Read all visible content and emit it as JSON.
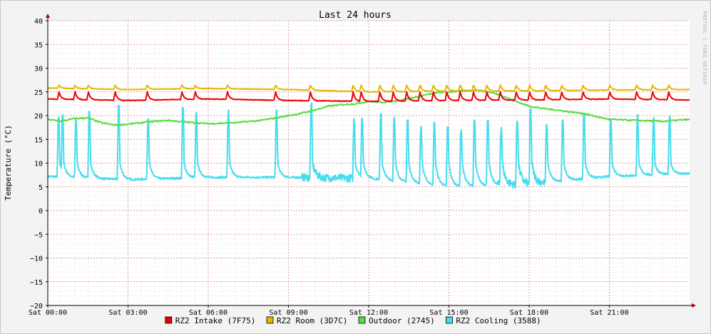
{
  "chart_data": {
    "type": "line",
    "title": "Last 24 hours",
    "ylabel": "Temperature (°C)",
    "xlabel": "",
    "watermark": "RRDTOOL / TOBI OETIKER",
    "ylim": [
      -20,
      40
    ],
    "y_ticks": [
      "40",
      "35",
      "30",
      "25",
      "20",
      "15",
      "10",
      "5",
      "0",
      "−5",
      "−10",
      "−15",
      "−20"
    ],
    "x_tick_labels": [
      "Sat 00:00",
      "Sat 03:00",
      "Sat 06:00",
      "Sat 09:00",
      "Sat 12:00",
      "Sat 15:00",
      "Sat 18:00",
      "Sat 21:00"
    ],
    "x_ticks_hours": [
      0,
      3,
      6,
      9,
      12,
      15,
      18,
      21
    ],
    "xlim_hours": [
      0,
      24
    ],
    "grid": true,
    "legend_position": "bottom",
    "series": [
      {
        "name": "RZ2 Intake (7F75)",
        "color": "#ee0000",
        "baseline": [
          [
            0,
            23.5
          ],
          [
            3,
            23.2
          ],
          [
            6,
            23.5
          ],
          [
            9,
            23.2
          ],
          [
            12,
            23.0
          ],
          [
            15,
            23.2
          ],
          [
            18,
            23.3
          ],
          [
            21,
            23.5
          ],
          [
            24,
            23.3
          ]
        ],
        "spikes": [
          0.4,
          1.0,
          1.5,
          2.5,
          3.7,
          5.0,
          5.5,
          6.7,
          8.5,
          9.8,
          11.4,
          11.7,
          12.4,
          12.9,
          13.4,
          13.9,
          14.4,
          14.9,
          15.4,
          15.9,
          16.4,
          16.9,
          17.5,
          18.0,
          18.6,
          19.2,
          20.0,
          21.0,
          22.0,
          22.6,
          23.2
        ],
        "spike_peak": 25.0
      },
      {
        "name": "RZ2 Room (3D7C)",
        "color": "#e8b400",
        "baseline": [
          [
            0,
            25.8
          ],
          [
            3,
            25.5
          ],
          [
            6,
            25.7
          ],
          [
            9,
            25.5
          ],
          [
            12,
            25.0
          ],
          [
            15,
            25.2
          ],
          [
            18,
            25.2
          ],
          [
            21,
            25.4
          ],
          [
            24,
            25.5
          ]
        ],
        "spikes": [
          0.4,
          1.0,
          1.5,
          2.5,
          3.7,
          5.0,
          5.5,
          6.7,
          8.5,
          9.8,
          11.4,
          11.7,
          12.4,
          12.9,
          13.4,
          13.9,
          14.4,
          14.9,
          15.4,
          15.9,
          16.4,
          16.9,
          17.5,
          18.0,
          18.6,
          19.2,
          20.0,
          21.0,
          22.0,
          22.6,
          23.2
        ],
        "spike_peak": 26.4
      },
      {
        "name": "Outdoor (2745)",
        "color": "#55dd44",
        "points": [
          [
            0,
            19.2
          ],
          [
            0.5,
            18.8
          ],
          [
            1,
            19.4
          ],
          [
            1.5,
            19.5
          ],
          [
            2,
            18.5
          ],
          [
            2.5,
            18.0
          ],
          [
            3,
            18.2
          ],
          [
            3.5,
            18.5
          ],
          [
            4,
            18.8
          ],
          [
            4.5,
            19.0
          ],
          [
            5,
            18.7
          ],
          [
            6,
            18.3
          ],
          [
            7,
            18.5
          ],
          [
            8,
            19.0
          ],
          [
            8.5,
            19.5
          ],
          [
            9,
            20.0
          ],
          [
            9.5,
            20.5
          ],
          [
            10,
            21.2
          ],
          [
            10.5,
            22.0
          ],
          [
            11,
            22.3
          ],
          [
            11.5,
            22.5
          ],
          [
            12,
            23.0
          ],
          [
            12.5,
            22.8
          ],
          [
            13,
            23.1
          ],
          [
            13.5,
            23.6
          ],
          [
            14,
            24.2
          ],
          [
            14.5,
            24.8
          ],
          [
            15,
            25.0
          ],
          [
            15.5,
            25.2
          ],
          [
            16,
            25.4
          ],
          [
            16.5,
            25.0
          ],
          [
            17,
            24.2
          ],
          [
            17.5,
            23.0
          ],
          [
            18,
            22.0
          ],
          [
            18.5,
            21.5
          ],
          [
            19,
            21.2
          ],
          [
            19.5,
            20.8
          ],
          [
            20,
            20.5
          ],
          [
            20.5,
            19.8
          ],
          [
            21,
            19.2
          ],
          [
            22,
            19.0
          ],
          [
            23,
            18.8
          ],
          [
            23.5,
            19.0
          ],
          [
            24,
            19.2
          ]
        ]
      },
      {
        "name": "RZ2 Cooling (3588)",
        "color": "#44ddee",
        "baseline": [
          [
            0,
            7.2
          ],
          [
            3,
            6.5
          ],
          [
            6,
            7.0
          ],
          [
            9,
            7.0
          ],
          [
            12,
            6.8
          ],
          [
            15,
            5.0
          ],
          [
            18,
            5.6
          ],
          [
            21,
            7.2
          ],
          [
            24,
            7.8
          ]
        ],
        "cycles": [
          [
            0.35,
            19.5
          ],
          [
            0.5,
            20.0
          ],
          [
            1.0,
            19.0
          ],
          [
            1.5,
            21.0
          ],
          [
            2.6,
            22.0
          ],
          [
            3.7,
            19.5
          ],
          [
            5.0,
            21.5
          ],
          [
            5.5,
            20.5
          ],
          [
            6.7,
            21.0
          ],
          [
            8.5,
            21.0
          ],
          [
            9.8,
            22.0
          ],
          [
            11.4,
            19.0
          ],
          [
            11.7,
            19.5
          ],
          [
            12.4,
            20.5
          ],
          [
            12.9,
            19.5
          ],
          [
            13.4,
            19.0
          ],
          [
            13.9,
            17.5
          ],
          [
            14.4,
            18.5
          ],
          [
            14.9,
            17.5
          ],
          [
            15.4,
            17.0
          ],
          [
            15.9,
            19.0
          ],
          [
            16.4,
            19.0
          ],
          [
            16.9,
            17.5
          ],
          [
            17.5,
            19.0
          ],
          [
            18.0,
            21.0
          ],
          [
            18.6,
            18.0
          ],
          [
            19.2,
            19.0
          ],
          [
            20.0,
            20.5
          ],
          [
            21.0,
            19.0
          ],
          [
            22.0,
            20.0
          ],
          [
            22.6,
            19.5
          ],
          [
            23.2,
            20.0
          ]
        ]
      }
    ]
  }
}
